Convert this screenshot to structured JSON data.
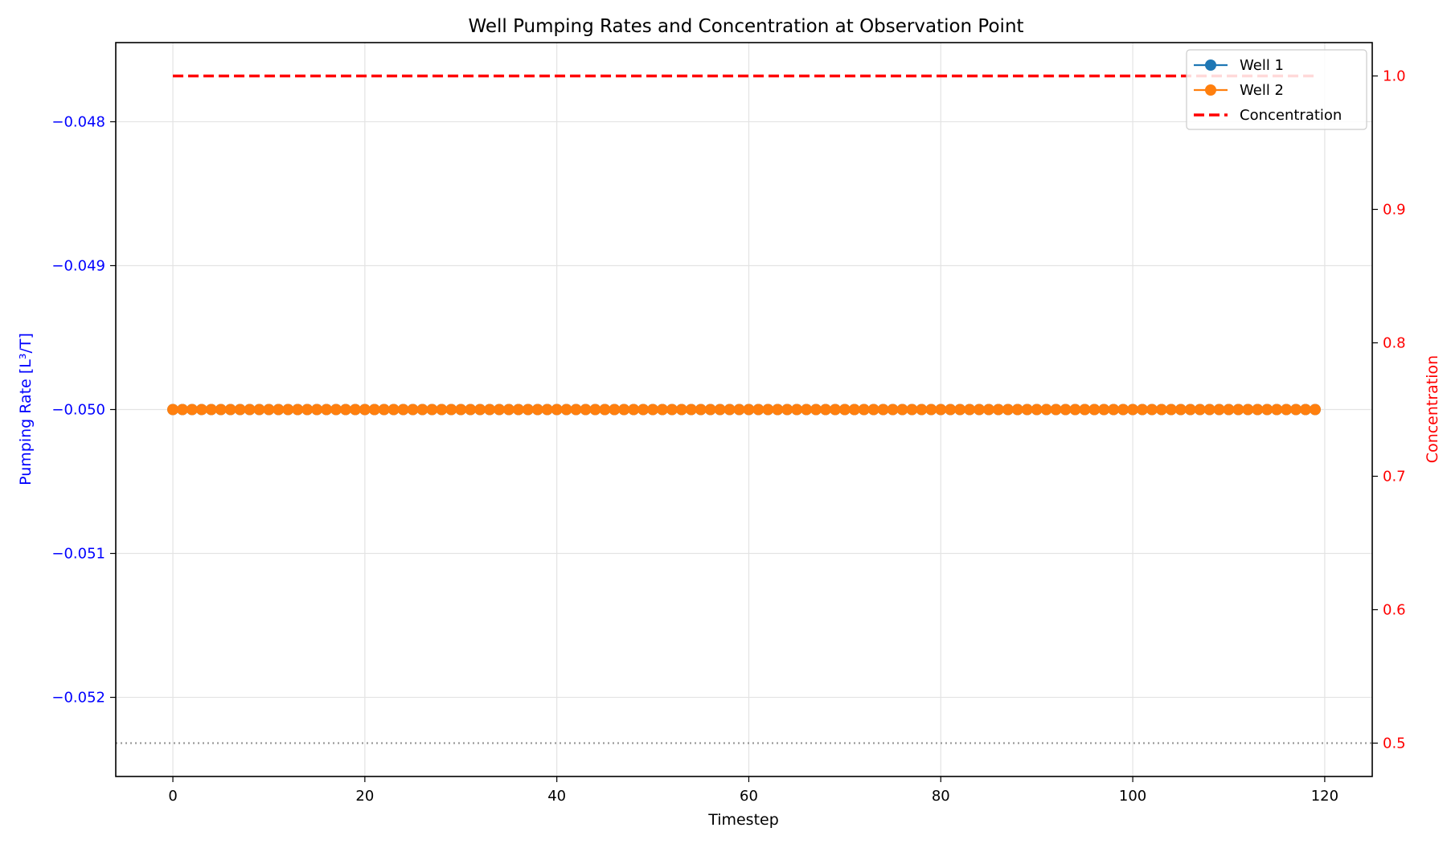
{
  "chart_data": {
    "type": "line",
    "title": "Well Pumping Rates and Concentration at Observation Point",
    "xlabel": "Timestep",
    "ylabel_left": "Pumping Rate [L³/T]",
    "ylabel_right": "Concentration",
    "xlim": [
      -5.95,
      124.95
    ],
    "ylim_left": [
      -0.05255,
      -0.04745
    ],
    "ylim_right": [
      0.475,
      1.025
    ],
    "x_ticks": [
      0,
      20,
      40,
      60,
      80,
      100,
      120
    ],
    "x_tick_labels": [
      "0",
      "20",
      "40",
      "60",
      "80",
      "100",
      "120"
    ],
    "y_left_ticks": [
      -0.048,
      -0.049,
      -0.05,
      -0.051,
      -0.052
    ],
    "y_left_tick_labels": [
      "−0.048",
      "−0.049",
      "−0.050",
      "−0.051",
      "−0.052"
    ],
    "y_right_ticks": [
      0.5,
      0.6,
      0.7,
      0.8,
      0.9,
      1.0
    ],
    "y_right_tick_labels": [
      "0.5",
      "0.6",
      "0.7",
      "0.8",
      "0.9",
      "1.0"
    ],
    "grid": true,
    "legend_position": "top-right",
    "x_start": 0,
    "x_end": 119,
    "series": [
      {
        "name": "Well 1",
        "axis": "left",
        "style": "line-marker",
        "color": "#1f77b4",
        "value": -0.05
      },
      {
        "name": "Well 2",
        "axis": "left",
        "style": "line-marker",
        "color": "#ff7f0e",
        "value": -0.05
      },
      {
        "name": "Concentration",
        "axis": "right",
        "style": "dashed",
        "color": "#ff0000",
        "value": 1.0
      }
    ],
    "reference_line": {
      "axis": "right",
      "value": 0.5,
      "style": "dotted",
      "color": "#888888"
    },
    "left_axis_color": "#0000ff",
    "right_axis_color": "#ff0000"
  }
}
